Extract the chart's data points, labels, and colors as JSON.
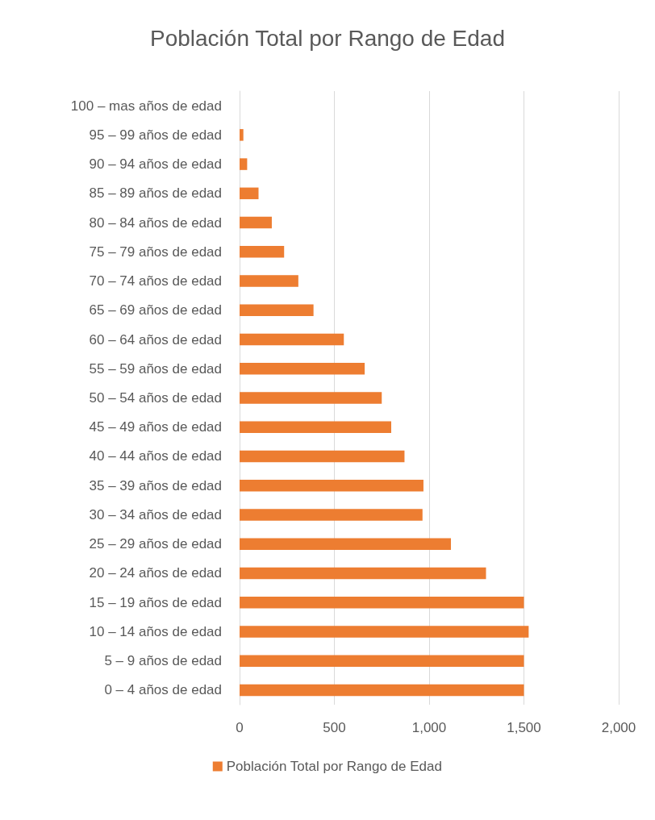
{
  "chart_data": {
    "type": "bar",
    "orientation": "horizontal",
    "title": "Población Total por Rango de Edad",
    "categories": [
      "100 – mas años de edad",
      "95 – 99 años de edad",
      "90 – 94 años de edad",
      "85 – 89 años de edad",
      "80 – 84 años de edad",
      "75 – 79 años de edad",
      "70 – 74 años de edad",
      "65 – 69 años de edad",
      "60 – 64 años de edad",
      "55 – 59 años de edad",
      "50 – 54 años de edad",
      "45 – 49 años de edad",
      "40 – 44 años de edad",
      "35 – 39 años de edad",
      "30 – 34 años de edad",
      "25 – 29 años de edad",
      "20 – 24 años de edad",
      "15 – 19 años de edad",
      "10 – 14 años de edad",
      "5 – 9 años de edad",
      "0 – 4 años de edad"
    ],
    "series": [
      {
        "name": "Población Total por Rango de Edad",
        "color": "#ed7d31",
        "values": [
          0,
          20,
          40,
          100,
          170,
          235,
          310,
          390,
          550,
          660,
          750,
          800,
          870,
          970,
          965,
          1115,
          1300,
          1500,
          1525,
          1500,
          1500
        ]
      }
    ],
    "xlim": [
      0,
      2000
    ],
    "xticks": [
      0,
      500,
      {
        "value": 1000,
        "label": "1,000"
      },
      {
        "value": 1500,
        "label": "1,500"
      },
      {
        "value": 2000,
        "label": "2,000"
      }
    ],
    "grid": "x",
    "legend": "bottom"
  }
}
